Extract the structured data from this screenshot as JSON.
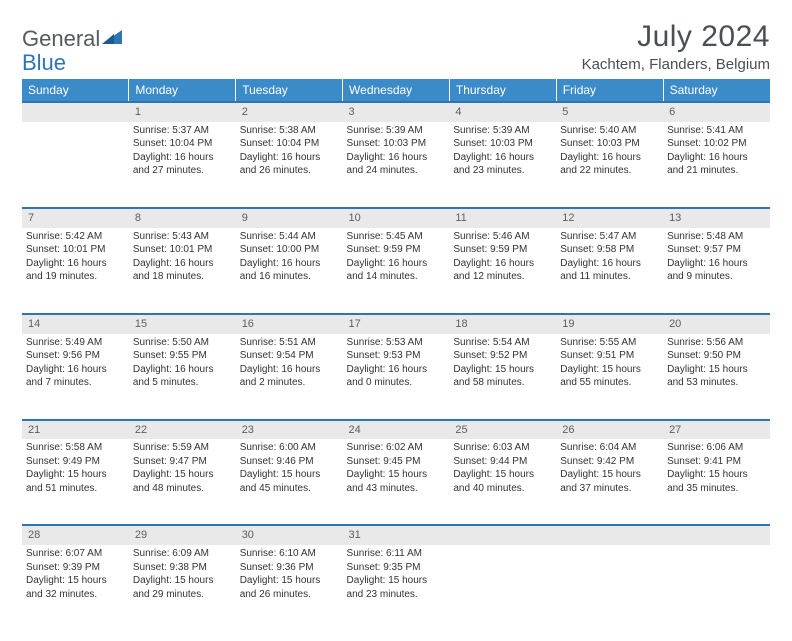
{
  "brand": {
    "part1": "General",
    "part2": "Blue"
  },
  "title": "July 2024",
  "location": "Kachtem, Flanders, Belgium",
  "theme": {
    "header_bg": "#3b8bc9",
    "accent": "#2e75b6",
    "daynum_bg": "#e9e9e9",
    "text": "#333333",
    "muted": "#5b5f63",
    "page_bg": "#ffffff"
  },
  "weekdays": [
    "Sunday",
    "Monday",
    "Tuesday",
    "Wednesday",
    "Thursday",
    "Friday",
    "Saturday"
  ],
  "weeks": [
    {
      "nums": [
        "",
        "1",
        "2",
        "3",
        "4",
        "5",
        "6"
      ],
      "cells": [
        null,
        {
          "sunrise": "Sunrise: 5:37 AM",
          "sunset": "Sunset: 10:04 PM",
          "d1": "Daylight: 16 hours",
          "d2": "and 27 minutes."
        },
        {
          "sunrise": "Sunrise: 5:38 AM",
          "sunset": "Sunset: 10:04 PM",
          "d1": "Daylight: 16 hours",
          "d2": "and 26 minutes."
        },
        {
          "sunrise": "Sunrise: 5:39 AM",
          "sunset": "Sunset: 10:03 PM",
          "d1": "Daylight: 16 hours",
          "d2": "and 24 minutes."
        },
        {
          "sunrise": "Sunrise: 5:39 AM",
          "sunset": "Sunset: 10:03 PM",
          "d1": "Daylight: 16 hours",
          "d2": "and 23 minutes."
        },
        {
          "sunrise": "Sunrise: 5:40 AM",
          "sunset": "Sunset: 10:03 PM",
          "d1": "Daylight: 16 hours",
          "d2": "and 22 minutes."
        },
        {
          "sunrise": "Sunrise: 5:41 AM",
          "sunset": "Sunset: 10:02 PM",
          "d1": "Daylight: 16 hours",
          "d2": "and 21 minutes."
        }
      ]
    },
    {
      "nums": [
        "7",
        "8",
        "9",
        "10",
        "11",
        "12",
        "13"
      ],
      "cells": [
        {
          "sunrise": "Sunrise: 5:42 AM",
          "sunset": "Sunset: 10:01 PM",
          "d1": "Daylight: 16 hours",
          "d2": "and 19 minutes."
        },
        {
          "sunrise": "Sunrise: 5:43 AM",
          "sunset": "Sunset: 10:01 PM",
          "d1": "Daylight: 16 hours",
          "d2": "and 18 minutes."
        },
        {
          "sunrise": "Sunrise: 5:44 AM",
          "sunset": "Sunset: 10:00 PM",
          "d1": "Daylight: 16 hours",
          "d2": "and 16 minutes."
        },
        {
          "sunrise": "Sunrise: 5:45 AM",
          "sunset": "Sunset: 9:59 PM",
          "d1": "Daylight: 16 hours",
          "d2": "and 14 minutes."
        },
        {
          "sunrise": "Sunrise: 5:46 AM",
          "sunset": "Sunset: 9:59 PM",
          "d1": "Daylight: 16 hours",
          "d2": "and 12 minutes."
        },
        {
          "sunrise": "Sunrise: 5:47 AM",
          "sunset": "Sunset: 9:58 PM",
          "d1": "Daylight: 16 hours",
          "d2": "and 11 minutes."
        },
        {
          "sunrise": "Sunrise: 5:48 AM",
          "sunset": "Sunset: 9:57 PM",
          "d1": "Daylight: 16 hours",
          "d2": "and 9 minutes."
        }
      ]
    },
    {
      "nums": [
        "14",
        "15",
        "16",
        "17",
        "18",
        "19",
        "20"
      ],
      "cells": [
        {
          "sunrise": "Sunrise: 5:49 AM",
          "sunset": "Sunset: 9:56 PM",
          "d1": "Daylight: 16 hours",
          "d2": "and 7 minutes."
        },
        {
          "sunrise": "Sunrise: 5:50 AM",
          "sunset": "Sunset: 9:55 PM",
          "d1": "Daylight: 16 hours",
          "d2": "and 5 minutes."
        },
        {
          "sunrise": "Sunrise: 5:51 AM",
          "sunset": "Sunset: 9:54 PM",
          "d1": "Daylight: 16 hours",
          "d2": "and 2 minutes."
        },
        {
          "sunrise": "Sunrise: 5:53 AM",
          "sunset": "Sunset: 9:53 PM",
          "d1": "Daylight: 16 hours",
          "d2": "and 0 minutes."
        },
        {
          "sunrise": "Sunrise: 5:54 AM",
          "sunset": "Sunset: 9:52 PM",
          "d1": "Daylight: 15 hours",
          "d2": "and 58 minutes."
        },
        {
          "sunrise": "Sunrise: 5:55 AM",
          "sunset": "Sunset: 9:51 PM",
          "d1": "Daylight: 15 hours",
          "d2": "and 55 minutes."
        },
        {
          "sunrise": "Sunrise: 5:56 AM",
          "sunset": "Sunset: 9:50 PM",
          "d1": "Daylight: 15 hours",
          "d2": "and 53 minutes."
        }
      ]
    },
    {
      "nums": [
        "21",
        "22",
        "23",
        "24",
        "25",
        "26",
        "27"
      ],
      "cells": [
        {
          "sunrise": "Sunrise: 5:58 AM",
          "sunset": "Sunset: 9:49 PM",
          "d1": "Daylight: 15 hours",
          "d2": "and 51 minutes."
        },
        {
          "sunrise": "Sunrise: 5:59 AM",
          "sunset": "Sunset: 9:47 PM",
          "d1": "Daylight: 15 hours",
          "d2": "and 48 minutes."
        },
        {
          "sunrise": "Sunrise: 6:00 AM",
          "sunset": "Sunset: 9:46 PM",
          "d1": "Daylight: 15 hours",
          "d2": "and 45 minutes."
        },
        {
          "sunrise": "Sunrise: 6:02 AM",
          "sunset": "Sunset: 9:45 PM",
          "d1": "Daylight: 15 hours",
          "d2": "and 43 minutes."
        },
        {
          "sunrise": "Sunrise: 6:03 AM",
          "sunset": "Sunset: 9:44 PM",
          "d1": "Daylight: 15 hours",
          "d2": "and 40 minutes."
        },
        {
          "sunrise": "Sunrise: 6:04 AM",
          "sunset": "Sunset: 9:42 PM",
          "d1": "Daylight: 15 hours",
          "d2": "and 37 minutes."
        },
        {
          "sunrise": "Sunrise: 6:06 AM",
          "sunset": "Sunset: 9:41 PM",
          "d1": "Daylight: 15 hours",
          "d2": "and 35 minutes."
        }
      ]
    },
    {
      "nums": [
        "28",
        "29",
        "30",
        "31",
        "",
        "",
        ""
      ],
      "cells": [
        {
          "sunrise": "Sunrise: 6:07 AM",
          "sunset": "Sunset: 9:39 PM",
          "d1": "Daylight: 15 hours",
          "d2": "and 32 minutes."
        },
        {
          "sunrise": "Sunrise: 6:09 AM",
          "sunset": "Sunset: 9:38 PM",
          "d1": "Daylight: 15 hours",
          "d2": "and 29 minutes."
        },
        {
          "sunrise": "Sunrise: 6:10 AM",
          "sunset": "Sunset: 9:36 PM",
          "d1": "Daylight: 15 hours",
          "d2": "and 26 minutes."
        },
        {
          "sunrise": "Sunrise: 6:11 AM",
          "sunset": "Sunset: 9:35 PM",
          "d1": "Daylight: 15 hours",
          "d2": "and 23 minutes."
        },
        null,
        null,
        null
      ]
    }
  ]
}
